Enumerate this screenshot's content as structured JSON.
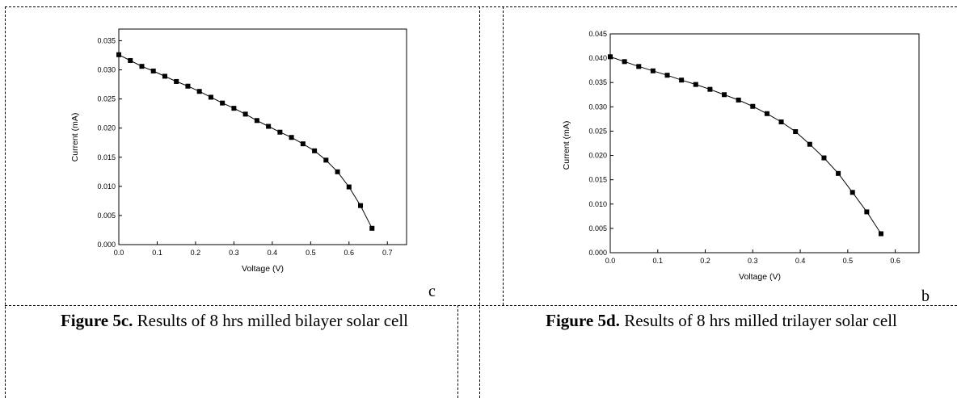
{
  "chart_data": [
    {
      "type": "line",
      "panel_letter": "c",
      "xlabel": "Voltage (V)",
      "ylabel": "Current (mA)",
      "xlim": [
        0.0,
        0.75
      ],
      "ylim": [
        0.0,
        0.037
      ],
      "xticks": [
        "0.0",
        "0.1",
        "0.2",
        "0.3",
        "0.4",
        "0.5",
        "0.6",
        "0.7"
      ],
      "yticks": [
        "0.000",
        "0.005",
        "0.010",
        "0.015",
        "0.020",
        "0.025",
        "0.030",
        "0.035"
      ],
      "grid": false,
      "marker": "square",
      "series": [
        {
          "x": [
            0.0,
            0.03,
            0.06,
            0.09,
            0.12,
            0.15,
            0.18,
            0.21,
            0.24,
            0.27,
            0.3,
            0.33,
            0.36,
            0.39,
            0.42,
            0.45,
            0.48,
            0.51,
            0.54,
            0.57,
            0.6,
            0.63,
            0.66
          ],
          "y": [
            0.0326,
            0.0316,
            0.0306,
            0.0298,
            0.0289,
            0.028,
            0.0272,
            0.0263,
            0.0253,
            0.0243,
            0.0234,
            0.0224,
            0.0213,
            0.0203,
            0.0193,
            0.0184,
            0.0173,
            0.0161,
            0.0145,
            0.0125,
            0.0099,
            0.0067,
            0.0028
          ]
        }
      ]
    },
    {
      "type": "line",
      "panel_letter": "b",
      "xlabel": "Voltage (V)",
      "ylabel": "Current (mA)",
      "xlim": [
        0.0,
        0.65
      ],
      "ylim": [
        0.0,
        0.045
      ],
      "xticks": [
        "0.0",
        "0.1",
        "0.2",
        "0.3",
        "0.4",
        "0.5",
        "0.6"
      ],
      "yticks": [
        "0.000",
        "0.005",
        "0.010",
        "0.015",
        "0.020",
        "0.025",
        "0.030",
        "0.035",
        "0.040",
        "0.045"
      ],
      "grid": false,
      "marker": "square",
      "series": [
        {
          "x": [
            0.0,
            0.03,
            0.06,
            0.09,
            0.12,
            0.15,
            0.18,
            0.21,
            0.24,
            0.27,
            0.3,
            0.33,
            0.36,
            0.39,
            0.42,
            0.45,
            0.48,
            0.51,
            0.54,
            0.57
          ],
          "y": [
            0.0403,
            0.0393,
            0.0383,
            0.0374,
            0.0365,
            0.0355,
            0.0346,
            0.0336,
            0.0325,
            0.0314,
            0.0301,
            0.0286,
            0.0269,
            0.0249,
            0.0223,
            0.0195,
            0.0163,
            0.0124,
            0.0084,
            0.0039
          ]
        }
      ]
    }
  ],
  "captions": {
    "left": {
      "bold": "Figure 5c.",
      "text": " Results of 8 hrs milled bilayer solar cell"
    },
    "right": {
      "bold": "Figure 5d.",
      "text": " Results of 8 hrs milled trilayer solar cell"
    }
  }
}
